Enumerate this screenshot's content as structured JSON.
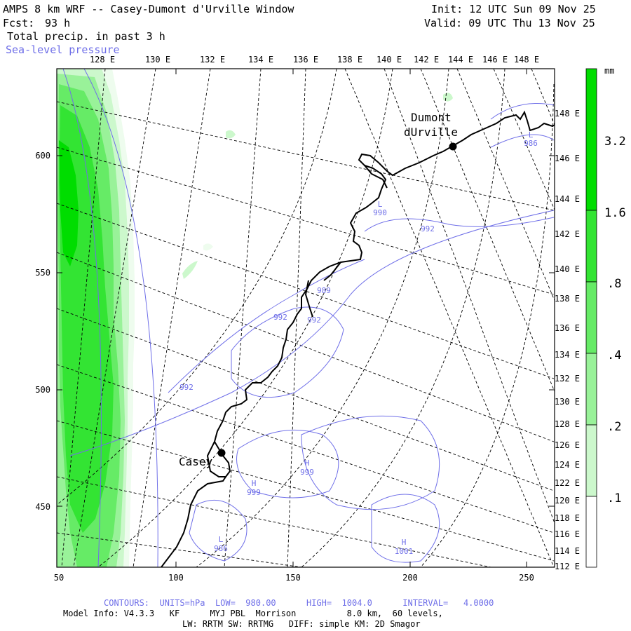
{
  "header": {
    "title": "AMPS 8 km WRF -- Casey-Dumont d'Urville Window",
    "forecast_label": "Fcst:",
    "forecast_hours": "93 h",
    "field": "Total precip. in past 3 h",
    "overlay": "Sea-level pressure",
    "init": "Init: 12 UTC Sun 09 Nov 25",
    "valid": "Valid: 09 UTC Thu 13 Nov 25"
  },
  "map": {
    "top_lon_labels": [
      "128 E",
      "130 E",
      "132 E",
      "134 E",
      "136 E",
      "138 E",
      "140 E",
      "142 E",
      "144 E",
      "146 E",
      "148 E"
    ],
    "right_lat_labels": [
      "148 E",
      "146 E",
      "144 E",
      "142 E",
      "140 E",
      "138 E",
      "136 E",
      "134 E",
      "132 E",
      "130 E",
      "128 E",
      "126 E",
      "124 E",
      "122 E",
      "120 E",
      "118 E",
      "116 E",
      "114 E",
      "112 E"
    ],
    "left_y_labels": [
      "600",
      "550",
      "500",
      "450"
    ],
    "bottom_x_labels": [
      "50",
      "100",
      "150",
      "200",
      "250"
    ],
    "stations": [
      {
        "name_line1": "Dumont",
        "name_line2": "dUrville"
      },
      {
        "name_line1": "Casey",
        "name_line2": ""
      }
    ],
    "pressure_labels": [
      {
        "kind": "L",
        "value": "986"
      },
      {
        "kind": "L",
        "value": "990"
      },
      {
        "kind": "",
        "value": "992"
      },
      {
        "kind": "",
        "value": "989"
      },
      {
        "kind": "",
        "value": "992"
      },
      {
        "kind": "",
        "value": "992"
      },
      {
        "kind": "",
        "value": "992"
      },
      {
        "kind": "H",
        "value": "999"
      },
      {
        "kind": "H",
        "value": "999"
      },
      {
        "kind": "L",
        "value": "986"
      },
      {
        "kind": "H",
        "value": "1001"
      }
    ]
  },
  "legend": {
    "units": "mm",
    "labels": [
      "3.2",
      "1.6",
      ".8",
      ".4",
      ".2",
      ".1"
    ],
    "colors": [
      "#00dd00",
      "#33e433",
      "#66eb66",
      "#99f299",
      "#ccf8cc",
      "#eefcee"
    ]
  },
  "footer": {
    "contours": "CONTOURS:  UNITS=hPa  LOW=  980.00      HIGH=  1004.0      INTERVAL=   4.0000",
    "model_info": "Model Info: V4.3.3   KF      MYJ PBL  Morrison          8.0 km,  60 levels,",
    "physics": "LW: RRTM SW: RRTMG   DIFF: simple KM: 2D Smagor"
  }
}
